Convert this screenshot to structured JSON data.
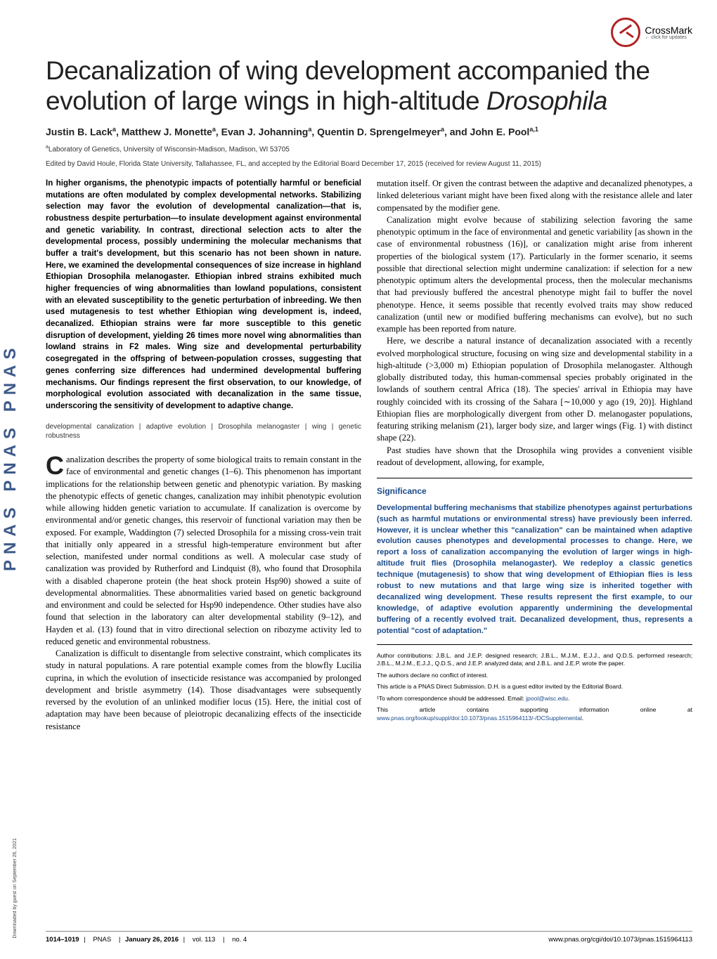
{
  "sidebar_text": "PNAS  PNAS  PNAS",
  "download_note": "Downloaded by guest on September 26, 2021",
  "crossmark": {
    "label": "CrossMark",
    "sub": "← click for updates"
  },
  "title_part1": "Decanalization of wing development accompanied the evolution of large wings in high-altitude ",
  "title_italic": "Drosophila",
  "authors_html": "Justin B. Lack<sup>a</sup>, Matthew J. Monette<sup>a</sup>, Evan J. Johanning<sup>a</sup>, Quentin D. Sprengelmeyer<sup>a</sup>, and John E. Pool<sup>a,1</sup>",
  "affiliation_html": "<sup>a</sup>Laboratory of Genetics, University of Wisconsin-Madison, Madison, WI 53705",
  "edited": "Edited by David Houle, Florida State University, Tallahassee, FL, and accepted by the Editorial Board December 17, 2015 (received for review August 11, 2015)",
  "abstract": "In higher organisms, the phenotypic impacts of potentially harmful or beneficial mutations are often modulated by complex developmental networks. Stabilizing selection may favor the evolution of developmental canalization—that is, robustness despite perturbation—to insulate development against environmental and genetic variability. In contrast, directional selection acts to alter the developmental process, possibly undermining the molecular mechanisms that buffer a trait's development, but this scenario has not been shown in nature. Here, we examined the developmental consequences of size increase in highland Ethiopian Drosophila melanogaster. Ethiopian inbred strains exhibited much higher frequencies of wing abnormalities than lowland populations, consistent with an elevated susceptibility to the genetic perturbation of inbreeding. We then used mutagenesis to test whether Ethiopian wing development is, indeed, decanalized. Ethiopian strains were far more susceptible to this genetic disruption of development, yielding 26 times more novel wing abnormalities than lowland strains in F2 males. Wing size and developmental perturbability cosegregated in the offspring of between-population crosses, suggesting that genes conferring size differences had undermined developmental buffering mechanisms. Our findings represent the first observation, to our knowledge, of morphological evolution associated with decanalization in the same tissue, underscoring the sensitivity of development to adaptive change.",
  "keywords": "developmental canalization | adaptive evolution | Drosophila melanogaster | wing | genetic robustness",
  "col1_p1": "analization describes the property of some biological traits to remain constant in the face of environmental and genetic changes (1–6). This phenomenon has important implications for the relationship between genetic and phenotypic variation. By masking the phenotypic effects of genetic changes, canalization may inhibit phenotypic evolution while allowing hidden genetic variation to accumulate. If canalization is overcome by environmental and/or genetic changes, this reservoir of functional variation may then be exposed. For example, Waddington (7) selected Drosophila for a missing cross-vein trait that initially only appeared in a stressful high-temperature environment but after selection, manifested under normal conditions as well. A molecular case study of canalization was provided by Rutherford and Lindquist (8), who found that Drosophila with a disabled chaperone protein (the heat shock protein Hsp90) showed a suite of developmental abnormalities. These abnormalities varied based on genetic background and environment and could be selected for Hsp90 independence. Other studies have also found that selection in the laboratory can alter developmental stability (9–12), and Hayden et al. (13) found that in vitro directional selection on ribozyme activity led to reduced genetic and environmental robustness.",
  "col1_p2": "Canalization is difficult to disentangle from selective constraint, which complicates its study in natural populations. A rare potential example comes from the blowfly Lucilia cuprina, in which the evolution of insecticide resistance was accompanied by prolonged development and bristle asymmetry (14). Those disadvantages were subsequently reversed by the evolution of an unlinked modifier locus (15). Here, the initial cost of adaptation may have been because of pleiotropic decanalizing effects of the insecticide resistance",
  "col2_p1": "mutation itself. Or given the contrast between the adaptive and decanalized phenotypes, a linked deleterious variant might have been fixed along with the resistance allele and later compensated by the modifier gene.",
  "col2_p2": "Canalization might evolve because of stabilizing selection favoring the same phenotypic optimum in the face of environmental and genetic variability [as shown in the case of environmental robustness (16)], or canalization might arise from inherent properties of the biological system (17). Particularly in the former scenario, it seems possible that directional selection might undermine canalization: if selection for a new phenotypic optimum alters the developmental process, then the molecular mechanisms that had previously buffered the ancestral phenotype might fail to buffer the novel phenotype. Hence, it seems possible that recently evolved traits may show reduced canalization (until new or modified buffering mechanisms can evolve), but no such example has been reported from nature.",
  "col2_p3": "Here, we describe a natural instance of decanalization associated with a recently evolved morphological structure, focusing on wing size and developmental stability in a high-altitude (>3,000 m) Ethiopian population of Drosophila melanogaster. Although globally distributed today, this human-commensal species probably originated in the lowlands of southern central Africa (18). The species' arrival in Ethiopia may have roughly coincided with its crossing of the Sahara [∼10,000 y ago (19, 20)]. Highland Ethiopian flies are morphologically divergent from other D. melanogaster populations, featuring striking melanism (21), larger body size, and larger wings (Fig. 1) with distinct shape (22).",
  "col2_p4": "Past studies have shown that the Drosophila wing provides a convenient visible readout of development, allowing, for example,",
  "significance": {
    "title": "Significance",
    "text": "Developmental buffering mechanisms that stabilize phenotypes against perturbations (such as harmful mutations or environmental stress) have previously been inferred. However, it is unclear whether this \"canalization\" can be maintained when adaptive evolution causes phenotypes and developmental processes to change. Here, we report a loss of canalization accompanying the evolution of larger wings in high-altitude fruit flies (Drosophila melanogaster). We redeploy a classic genetics technique (mutagenesis) to show that wing development of Ethiopian flies is less robust to new mutations and that large wing size is inherited together with decanalized wing development. These results represent the first example, to our knowledge, of adaptive evolution apparently undermining the developmental buffering of a recently evolved trait. Decanalized development, thus, represents a potential \"cost of adaptation.\""
  },
  "footer_notes": {
    "contrib": "Author contributions: J.B.L. and J.E.P. designed research; J.B.L., M.J.M., E.J.J., and Q.D.S. performed research; J.B.L., M.J.M., E.J.J., Q.D.S., and J.E.P. analyzed data; and J.B.L. and J.E.P. wrote the paper.",
    "conflict": "The authors declare no conflict of interest.",
    "direct": "This article is a PNAS Direct Submission. D.H. is a guest editor invited by the Editorial Board.",
    "corresp_pre": "¹To whom correspondence should be addressed. Email: ",
    "corresp_email": "jpool@wisc.edu",
    "si_pre": "This article contains supporting information online at ",
    "si_link": "www.pnas.org/lookup/suppl/doi:10.1073/pnas.1515964113/-/DCSupplemental",
    "si_post": "."
  },
  "page_footer": {
    "pages": "1014–1019",
    "journal": "PNAS",
    "date": "January 26, 2016",
    "vol": "vol. 113",
    "no": "no. 4",
    "url": "www.pnas.org/cgi/doi/10.1073/pnas.1515964113"
  },
  "colors": {
    "link": "#1a4a8a",
    "sig": "#1a4a8a",
    "crossmark": "#b22222"
  }
}
